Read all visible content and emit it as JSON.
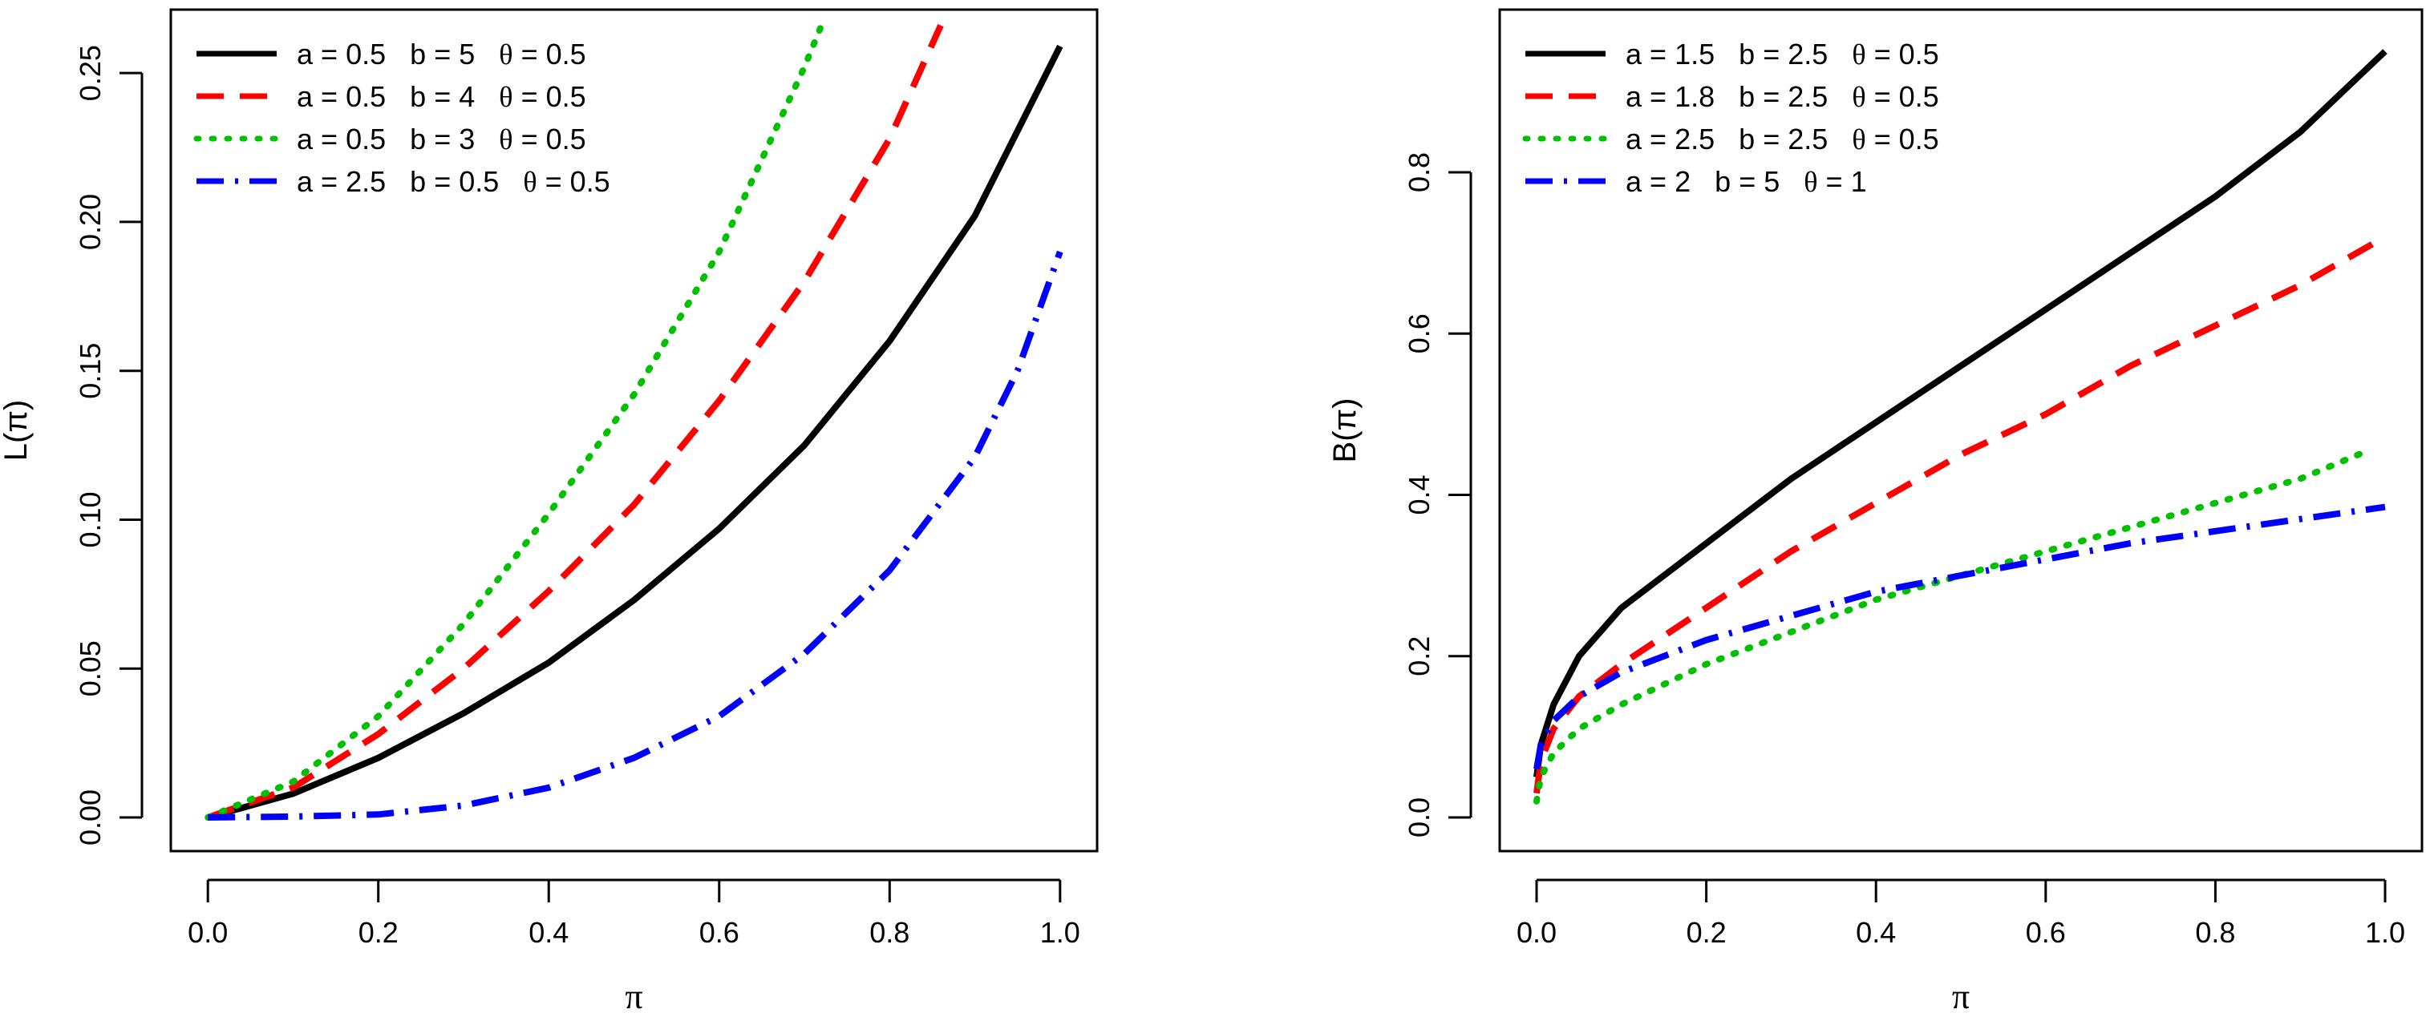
{
  "chart_data": [
    {
      "type": "line",
      "title": "",
      "xlabel": "π",
      "ylabel": "L(π)",
      "xlim": [
        0,
        1
      ],
      "ylim": [
        0,
        0.26
      ],
      "xticks": [
        "0.0",
        "0.2",
        "0.4",
        "0.6",
        "0.8",
        "1.0"
      ],
      "xtick_values": [
        0,
        0.2,
        0.4,
        0.6,
        0.8,
        1.0
      ],
      "yticks": [
        "0.00",
        "0.05",
        "0.10",
        "0.15",
        "0.20",
        "0.25"
      ],
      "ytick_values": [
        0,
        0.05,
        0.1,
        0.15,
        0.2,
        0.25
      ],
      "legend_position": "top-left",
      "series": [
        {
          "name": "a = 0.5  b = 5  θ = 0.5",
          "a": "0.5",
          "b": "5",
          "theta": "0.5",
          "color": "#000000",
          "style": "solid",
          "x": [
            0,
            0.1,
            0.2,
            0.3,
            0.4,
            0.5,
            0.6,
            0.7,
            0.8,
            0.9,
            1.0
          ],
          "y": [
            0,
            0.008,
            0.02,
            0.035,
            0.052,
            0.073,
            0.097,
            0.125,
            0.16,
            0.202,
            0.259
          ]
        },
        {
          "name": "a = 0.5  b = 4  θ = 0.5",
          "a": "0.5",
          "b": "4",
          "theta": "0.5",
          "color": "#ff0000",
          "style": "dashed",
          "x": [
            0,
            0.1,
            0.2,
            0.3,
            0.4,
            0.5,
            0.6,
            0.7,
            0.8,
            0.86
          ],
          "y": [
            0,
            0.01,
            0.028,
            0.05,
            0.076,
            0.105,
            0.14,
            0.18,
            0.228,
            0.266
          ]
        },
        {
          "name": "a = 0.5  b = 3  θ = 0.5",
          "a": "0.5",
          "b": "3",
          "theta": "0.5",
          "color": "#00c000",
          "style": "dotted",
          "x": [
            0,
            0.1,
            0.2,
            0.3,
            0.4,
            0.5,
            0.6,
            0.7,
            0.72
          ],
          "y": [
            0,
            0.012,
            0.034,
            0.065,
            0.102,
            0.142,
            0.19,
            0.252,
            0.266
          ]
        },
        {
          "name": "a = 2.5  b = 0.5  θ = 0.5",
          "a": "2.5",
          "b": "0.5",
          "theta": "0.5",
          "color": "#0000ff",
          "style": "dashdot",
          "x": [
            0,
            0.1,
            0.2,
            0.3,
            0.4,
            0.5,
            0.6,
            0.7,
            0.8,
            0.9,
            0.95,
            1.0
          ],
          "y": [
            0,
            0.0003,
            0.001,
            0.004,
            0.01,
            0.02,
            0.034,
            0.055,
            0.083,
            0.121,
            0.15,
            0.19
          ]
        }
      ]
    },
    {
      "type": "line",
      "title": "",
      "xlabel": "π",
      "ylabel": "B(π)",
      "xlim": [
        0,
        1
      ],
      "ylim": [
        0,
        0.96
      ],
      "xticks": [
        "0.0",
        "0.2",
        "0.4",
        "0.6",
        "0.8",
        "1.0"
      ],
      "xtick_values": [
        0,
        0.2,
        0.4,
        0.6,
        0.8,
        1.0
      ],
      "yticks": [
        "0.0",
        "0.2",
        "0.4",
        "0.6",
        "0.8"
      ],
      "ytick_values": [
        0,
        0.2,
        0.4,
        0.6,
        0.8
      ],
      "legend_position": "top-left",
      "series": [
        {
          "name": "a = 1.5  b = 2.5  θ = 0.5",
          "a": "1.5",
          "b": "2.5",
          "theta": "0.5",
          "color": "#000000",
          "style": "solid",
          "x": [
            0,
            0.005,
            0.02,
            0.05,
            0.1,
            0.2,
            0.3,
            0.4,
            0.5,
            0.6,
            0.7,
            0.8,
            0.9,
            1.0
          ],
          "y": [
            0.05,
            0.09,
            0.14,
            0.2,
            0.26,
            0.34,
            0.42,
            0.49,
            0.56,
            0.63,
            0.7,
            0.77,
            0.85,
            0.95
          ]
        },
        {
          "name": "a = 1.8  b = 2.5  θ = 0.5",
          "a": "1.8",
          "b": "2.5",
          "theta": "0.5",
          "color": "#ff0000",
          "style": "dashed",
          "x": [
            0,
            0.005,
            0.02,
            0.05,
            0.1,
            0.2,
            0.3,
            0.4,
            0.5,
            0.6,
            0.7,
            0.8,
            0.9,
            1.0
          ],
          "y": [
            0.03,
            0.07,
            0.11,
            0.15,
            0.19,
            0.26,
            0.33,
            0.39,
            0.45,
            0.5,
            0.56,
            0.61,
            0.66,
            0.72
          ]
        },
        {
          "name": "a = 2.5  b = 2.5  θ = 0.5",
          "a": "2.5",
          "b": "2.5",
          "theta": "0.5",
          "color": "#00c000",
          "style": "dotted",
          "x": [
            0,
            0.005,
            0.02,
            0.05,
            0.1,
            0.2,
            0.3,
            0.4,
            0.5,
            0.6,
            0.7,
            0.8,
            0.9,
            0.98
          ],
          "y": [
            0.02,
            0.05,
            0.08,
            0.11,
            0.14,
            0.19,
            0.23,
            0.27,
            0.3,
            0.33,
            0.36,
            0.39,
            0.42,
            0.455
          ]
        },
        {
          "name": "a = 2  b = 5  θ = 1",
          "a": "2",
          "b": "5",
          "theta": "1",
          "color": "#0000ff",
          "style": "dashdot",
          "x": [
            0,
            0.005,
            0.02,
            0.05,
            0.1,
            0.2,
            0.3,
            0.4,
            0.5,
            0.6,
            0.7,
            0.8,
            0.9,
            1.0
          ],
          "y": [
            0.06,
            0.09,
            0.12,
            0.15,
            0.18,
            0.22,
            0.25,
            0.28,
            0.3,
            0.32,
            0.34,
            0.355,
            0.37,
            0.385
          ]
        }
      ]
    }
  ],
  "legend_labels": {
    "a": "a",
    "b": "b",
    "theta": "θ",
    "eq": "="
  }
}
